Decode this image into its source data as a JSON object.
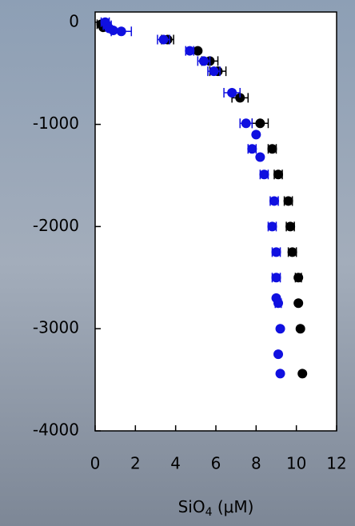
{
  "chart_data": {
    "type": "scatter",
    "x_label": {
      "main": "SiO",
      "sub": "4",
      "unit": " (μM)"
    },
    "xlim": [
      0,
      12
    ],
    "xticks": [
      0,
      2,
      4,
      6,
      8,
      10,
      12
    ],
    "ylim": [
      -4000,
      100
    ],
    "yticks": [
      0,
      -1000,
      -2000,
      -3000,
      -4000
    ],
    "series": [
      {
        "color": "#000000",
        "x": [
          0.3,
          0.4,
          0.5,
          3.6,
          5.1,
          5.7,
          6.1,
          7.2,
          8.2,
          8.8,
          9.1,
          9.6,
          9.7,
          9.8,
          10.1,
          10.1,
          10.2,
          10.3
        ],
        "values": [
          -20,
          -50,
          -10,
          -170,
          -280,
          -380,
          -480,
          -740,
          -990,
          -1240,
          -1490,
          -1750,
          -2000,
          -2250,
          -2500,
          -2750,
          -3000,
          -3440
        ],
        "errors": [
          0.2,
          null,
          null,
          0.3,
          null,
          0.4,
          0.4,
          0.4,
          0.4,
          0.2,
          0.2,
          0.2,
          0.2,
          0.2,
          0.15,
          null,
          null,
          null
        ]
      },
      {
        "color": "#1010e0",
        "x": [
          0.5,
          0.6,
          0.7,
          0.9,
          1.3,
          3.4,
          4.7,
          5.4,
          5.9,
          6.8,
          7.5,
          8.0,
          7.8,
          8.2,
          8.4,
          8.9,
          8.8,
          9.0,
          9.0,
          9.0,
          9.1,
          9.2,
          9.1,
          9.2
        ],
        "values": [
          0,
          -30,
          -60,
          -80,
          -90,
          -170,
          -280,
          -380,
          -480,
          -690,
          -990,
          -1100,
          -1240,
          -1320,
          -1490,
          -1750,
          -2000,
          -2250,
          -2500,
          -2700,
          -2750,
          -3000,
          -3250,
          -3440
        ],
        "errors": [
          0.2,
          0.2,
          null,
          null,
          0.5,
          0.3,
          0.2,
          0.3,
          0.3,
          0.4,
          0.3,
          null,
          0.2,
          null,
          0.2,
          0.2,
          0.2,
          0.2,
          0.2,
          null,
          0.15,
          null,
          null,
          null
        ]
      }
    ]
  }
}
